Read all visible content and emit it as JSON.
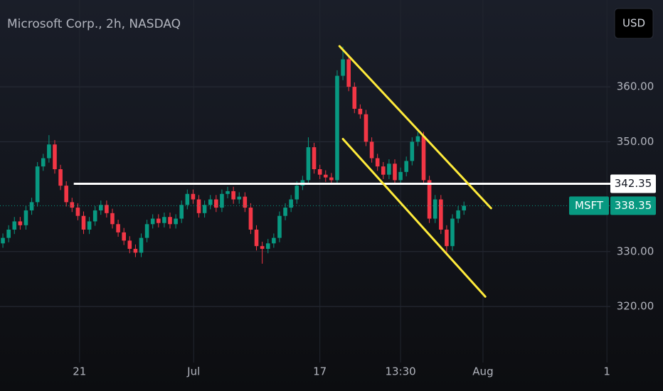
{
  "chart_data": {
    "type": "candlestick",
    "title": "Microsoft Corp., 2h, NASDAQ",
    "currency": "USD",
    "up_color": "#089981",
    "down_color": "#f23645",
    "open": [
      331.5,
      332.5,
      334,
      335.5,
      334.8,
      337.5,
      339,
      345.5,
      347,
      349.5,
      345,
      342,
      339,
      338,
      336.5,
      334,
      335.5,
      337.5,
      338.5,
      337,
      335,
      333.5,
      332,
      330.5,
      329.8,
      332.5,
      335,
      336,
      335.2,
      336.3,
      335,
      336,
      338.5,
      340.5,
      339.5,
      337,
      338.5,
      339.5,
      338,
      340.5,
      341,
      339.5,
      340,
      338,
      334,
      331,
      330.5,
      331.5,
      332.5,
      336.5,
      338,
      339.5,
      342,
      343,
      349,
      345,
      344,
      343.5,
      343,
      362,
      365,
      360,
      356,
      355,
      350,
      347,
      345.5,
      344,
      346,
      343,
      344.5,
      346.5,
      350,
      351,
      343,
      336,
      339.5,
      334,
      331,
      336,
      337.5
    ],
    "high": [
      333.3,
      334.8,
      336.3,
      336.3,
      338.3,
      339.8,
      346.3,
      347.8,
      351.2,
      350.3,
      345.8,
      342.8,
      339.8,
      338.8,
      337.3,
      336.3,
      338.3,
      339.3,
      339.3,
      337.8,
      335.8,
      334.3,
      332.8,
      331.3,
      333.3,
      335.8,
      336.8,
      336.8,
      337.1,
      337.1,
      336.8,
      339.3,
      341.3,
      341.3,
      340.3,
      339.3,
      340.3,
      340.3,
      341.3,
      341.8,
      341.8,
      340.8,
      340.8,
      338.8,
      334.8,
      331.8,
      332.3,
      333.3,
      337.3,
      338.8,
      340.3,
      342.8,
      343.8,
      350.8,
      349.8,
      345.8,
      344.8,
      344.3,
      363,
      367.3,
      365.8,
      360.8,
      356.8,
      355.8,
      350.8,
      347.8,
      346.3,
      346.8,
      346.8,
      345.3,
      347.3,
      350.8,
      351.8,
      351.8,
      343.8,
      340.3,
      340.3,
      334.8,
      336.8,
      338.3,
      339.1
    ],
    "low": [
      330.7,
      331.7,
      333.2,
      334,
      334,
      336.7,
      338.2,
      344.7,
      346.2,
      344.2,
      341.2,
      338.2,
      337.2,
      335.7,
      333.2,
      333.2,
      334.7,
      336.7,
      336.2,
      334.2,
      332.7,
      331.2,
      329.7,
      329,
      329,
      331.7,
      334.2,
      334.4,
      334.4,
      334.2,
      334.2,
      335.2,
      337.7,
      338.7,
      336.2,
      336.2,
      337.7,
      337.2,
      337.2,
      339.7,
      338.7,
      338.7,
      337.2,
      333.2,
      330.2,
      327.8,
      329.7,
      330.7,
      331.7,
      335.7,
      337.2,
      338.7,
      341.2,
      342.2,
      344.2,
      343.2,
      342.7,
      342.2,
      342.2,
      361.2,
      359.2,
      355.2,
      354.2,
      349.2,
      346.2,
      344.7,
      343.2,
      343.2,
      342.2,
      342.2,
      343.7,
      345.7,
      349.2,
      342.2,
      335.2,
      335.2,
      333.2,
      329.5,
      330.2,
      335.2,
      336.7
    ],
    "close": [
      332.5,
      334,
      335.5,
      334.8,
      337.5,
      339,
      345.5,
      347,
      349.5,
      345,
      342,
      339,
      338,
      336.5,
      334,
      335.5,
      337.5,
      338.5,
      337,
      335,
      333.5,
      332,
      330.5,
      329.8,
      332.5,
      335,
      336,
      335.2,
      336.3,
      335,
      336,
      338.5,
      340.5,
      339.5,
      337,
      338.5,
      339.5,
      338,
      340.5,
      341,
      339.5,
      340,
      338,
      334,
      331,
      330.5,
      331.5,
      332.5,
      336.5,
      338,
      339.5,
      342,
      343,
      349,
      345,
      344,
      343.5,
      343,
      362,
      365,
      360,
      356,
      355,
      350,
      347,
      345.5,
      344,
      346,
      343,
      344.5,
      346.5,
      350,
      351,
      343,
      336,
      339.5,
      334,
      331,
      336,
      337.5,
      338.35
    ],
    "xlim": [
      -0.5,
      105.4
    ],
    "xticks": [
      {
        "value": 13.3,
        "label": "21"
      },
      {
        "value": 33.1,
        "label": "Jul"
      },
      {
        "value": 55,
        "label": "17"
      },
      {
        "value": 69,
        "label": "13:30"
      },
      {
        "value": 83.3,
        "label": "Aug"
      },
      {
        "value": 104.8,
        "label": "1"
      }
    ],
    "ylim": [
      309.8,
      375.8
    ],
    "yticks": [
      {
        "value": 320,
        "label": "320.00"
      },
      {
        "value": 330,
        "label": "330.00"
      },
      {
        "value": 350,
        "label": "350.00"
      },
      {
        "value": 360,
        "label": "360.00"
      }
    ],
    "grid": true,
    "hline": {
      "value": 342.35,
      "color": "#ffffff"
    },
    "last": {
      "name": "MSFT",
      "value": 338.35
    },
    "trendlines": [
      {
        "x": [
          58.4,
          84.7
        ],
        "y": [
          367.4,
          337.9
        ],
        "color": "#ffeb3b"
      },
      {
        "x": [
          59.0,
          83.7
        ],
        "y": [
          350.5,
          321.8
        ],
        "color": "#ffeb3b"
      }
    ]
  }
}
